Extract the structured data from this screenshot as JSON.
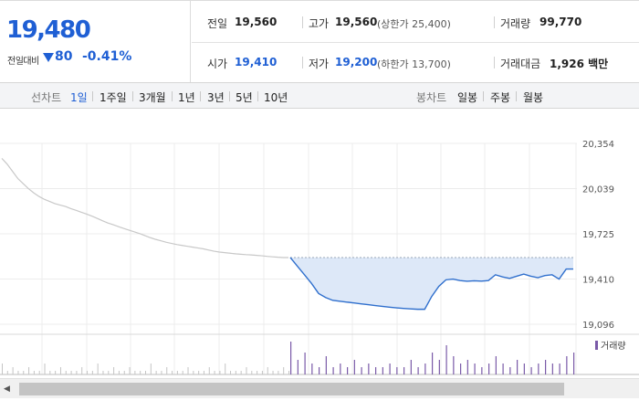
{
  "summary": {
    "price": "19,480",
    "change_label": "전일대비",
    "change_icon": "down-triangle-icon",
    "change_abs": "80",
    "change_pct": "-0.41%",
    "prev_close": {
      "label": "전일",
      "value": "19,560"
    },
    "high": {
      "label": "고가",
      "value": "19,560",
      "sub": "(상한가 25,400)"
    },
    "volume": {
      "label": "거래량",
      "value": "99,770"
    },
    "open": {
      "label": "시가",
      "value": "19,410"
    },
    "low": {
      "label": "저가",
      "value": "19,200",
      "sub": "(하한가 13,700)"
    },
    "trade_value": {
      "label": "거래대금",
      "value": "1,926 백만"
    }
  },
  "period_bar": {
    "line_label": "선차트",
    "line_items": [
      {
        "label": "1일",
        "active": true
      },
      {
        "label": "1주일",
        "active": false
      },
      {
        "label": "3개월",
        "active": false
      },
      {
        "label": "1년",
        "active": false
      },
      {
        "label": "3년",
        "active": false
      },
      {
        "label": "5년",
        "active": false
      },
      {
        "label": "10년",
        "active": false
      }
    ],
    "candle_label": "봉차트",
    "candle_items": [
      {
        "label": "일봉"
      },
      {
        "label": "주봉"
      },
      {
        "label": "월봉"
      }
    ]
  },
  "colors": {
    "accent_blue": "#1f5fd4",
    "line_blue": "#2f6fcd",
    "area_fill": "#dde8f8",
    "prev_day_line": "#c8c8c8",
    "volume_purple": "#7a5aa8"
  },
  "chart_data": {
    "type": "line",
    "y_ticks": [
      "20,354",
      "20,039",
      "19,725",
      "19,410",
      "19,096"
    ],
    "ylim": [
      19096,
      20354
    ],
    "grid": true,
    "volume_legend": "거래량",
    "previous_day_series": [
      20250,
      20210,
      20160,
      20110,
      20075,
      20040,
      20010,
      19985,
      19965,
      19950,
      19935,
      19925,
      19915,
      19900,
      19888,
      19875,
      19862,
      19848,
      19832,
      19815,
      19800,
      19788,
      19775,
      19762,
      19750,
      19738,
      19726,
      19712,
      19698,
      19686,
      19676,
      19666,
      19658,
      19650,
      19644,
      19638,
      19632,
      19626,
      19620,
      19612,
      19604,
      19598,
      19594,
      19590,
      19586,
      19583,
      19580,
      19578,
      19575,
      19572,
      19568,
      19565,
      19562,
      19560,
      19560
    ],
    "today_series": [
      19560,
      19500,
      19440,
      19380,
      19310,
      19282,
      19262,
      19256,
      19250,
      19244,
      19238,
      19232,
      19226,
      19220,
      19215,
      19210,
      19206,
      19203,
      19200,
      19200,
      19290,
      19360,
      19405,
      19410,
      19400,
      19395,
      19398,
      19396,
      19400,
      19440,
      19425,
      19415,
      19430,
      19445,
      19430,
      19420,
      19435,
      19440,
      19410,
      19480,
      19480
    ],
    "volume_prev": [
      3,
      1,
      2,
      1,
      1,
      2,
      1,
      1,
      3,
      1,
      1,
      2,
      1,
      1,
      1,
      2,
      1,
      1,
      3,
      1,
      1,
      2,
      1,
      1,
      2,
      1,
      1,
      1,
      3,
      1,
      1,
      2,
      1,
      1,
      1,
      2,
      1,
      1,
      1,
      2,
      1,
      1,
      3,
      1,
      1,
      1,
      2,
      1,
      1,
      1,
      2,
      1,
      1,
      2,
      1
    ],
    "volume_today": [
      9,
      4,
      6,
      3,
      2,
      5,
      2,
      3,
      2,
      4,
      2,
      3,
      2,
      2,
      3,
      2,
      2,
      4,
      2,
      3,
      6,
      4,
      8,
      5,
      3,
      4,
      3,
      2,
      3,
      5,
      3,
      2,
      4,
      3,
      2,
      3,
      4,
      3,
      3,
      5,
      6
    ]
  }
}
